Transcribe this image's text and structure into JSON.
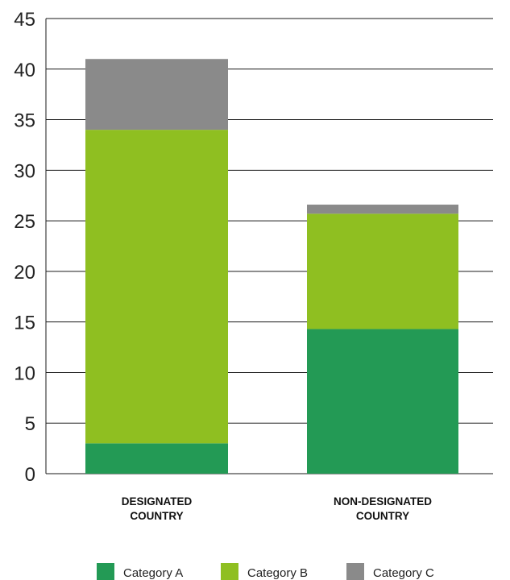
{
  "chart_data": {
    "type": "bar",
    "stacked": true,
    "categories": [
      [
        "DESIGNATED",
        "COUNTRY"
      ],
      [
        "NON-DESIGNATED",
        "COUNTRY"
      ]
    ],
    "series": [
      {
        "name": "Category A",
        "color": "#239a55",
        "values": [
          3.0,
          14.3
        ]
      },
      {
        "name": "Category B",
        "color": "#8fbf21",
        "values": [
          31.0,
          11.4
        ]
      },
      {
        "name": "Category C",
        "color": "#8a8a8a",
        "values": [
          7.0,
          0.9
        ]
      }
    ],
    "title": "",
    "xlabel": "",
    "ylabel": "",
    "ylim": [
      0,
      45
    ],
    "yticks": [
      0,
      5,
      10,
      15,
      20,
      25,
      30,
      35,
      40,
      45
    ],
    "grid": "horizontal",
    "legend_position": "bottom"
  }
}
